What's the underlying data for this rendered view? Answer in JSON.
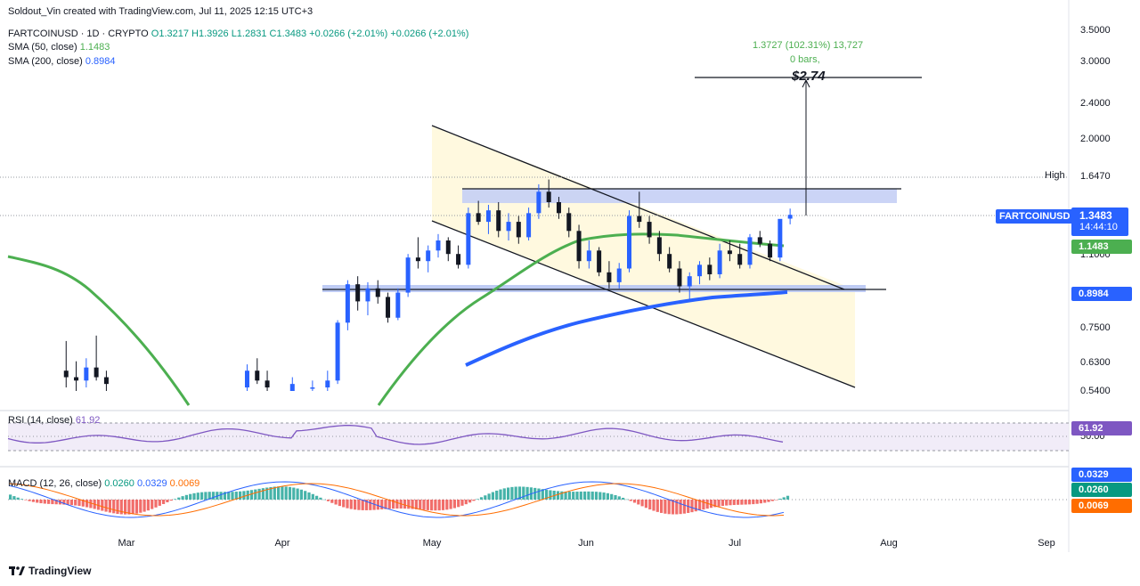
{
  "credit": "Soldout_Vin created with TradingView.com, Jul 11, 2025 12:15 UTC+3",
  "symbol_line": {
    "symbol": "FARTCOINUSD · 1D · CRYPTO",
    "open": "O1.3217",
    "high": "H1.3926",
    "low": "L1.2831",
    "close": "C1.3483",
    "change": "+0.0266 (+2.01%)",
    "change2": "+0.0266 (+2.01%)"
  },
  "sma50": {
    "label": "SMA (50, close)",
    "value": "1.1483",
    "color": "#4caf50"
  },
  "sma200": {
    "label": "SMA (200, close)",
    "value": "0.8984",
    "color": "#2962ff"
  },
  "projection": {
    "line1": "1.3727 (102.31%) 13,727",
    "line2": "0 bars,",
    "target": "$2.74"
  },
  "price_axis": [
    "3.5000",
    "3.0000",
    "2.4000",
    "2.0000",
    "1.6470",
    "1.1000",
    "0.7500",
    "0.6300",
    "0.5400"
  ],
  "high_label": "High",
  "high_value": "1.6470",
  "ticker_badge": {
    "name": "FARTCOINUSD",
    "price": "1.3483",
    "countdown": "14:44:10",
    "color": "#2962ff"
  },
  "sma50_badge": "1.1483",
  "sma200_badge": "0.8984",
  "rsi": {
    "label": "RSI (14, close)",
    "value": "61.92",
    "axis": "50.00",
    "color": "#7e57c2"
  },
  "macd": {
    "label": "MACD (12, 26, close)",
    "macd": "0.0260",
    "signal": "0.0329",
    "hist": "0.0069",
    "macd_color": "#2962ff",
    "signal_color": "#ff6d00"
  },
  "months": [
    "Mar",
    "Apr",
    "May",
    "Jun",
    "Jul",
    "Aug",
    "Sep"
  ],
  "brand": "TradingView",
  "chart_data": {
    "type": "candlestick",
    "symbol": "FARTCOINUSD",
    "interval": "1D",
    "y_scale": "log",
    "ylim": [
      0.54,
      3.5
    ],
    "last_close": 1.3483,
    "period_high": 1.647,
    "target": 2.74,
    "candles_approx": [
      {
        "date": "2025-02-17",
        "o": 0.6,
        "h": 0.7,
        "l": 0.55,
        "c": 0.58
      },
      {
        "date": "2025-02-19",
        "o": 0.58,
        "h": 0.63,
        "l": 0.54,
        "c": 0.57
      },
      {
        "date": "2025-02-21",
        "o": 0.57,
        "h": 0.64,
        "l": 0.55,
        "c": 0.61
      },
      {
        "date": "2025-02-23",
        "o": 0.61,
        "h": 0.72,
        "l": 0.57,
        "c": 0.58
      },
      {
        "date": "2025-02-25",
        "o": 0.58,
        "h": 0.6,
        "l": 0.54,
        "c": 0.56
      },
      {
        "date": "2025-03-25",
        "o": 0.55,
        "h": 0.62,
        "l": 0.54,
        "c": 0.6
      },
      {
        "date": "2025-03-27",
        "o": 0.6,
        "h": 0.64,
        "l": 0.56,
        "c": 0.57
      },
      {
        "date": "2025-03-29",
        "o": 0.57,
        "h": 0.6,
        "l": 0.54,
        "c": 0.55
      },
      {
        "date": "2025-04-03",
        "o": 0.54,
        "h": 0.58,
        "l": 0.54,
        "c": 0.56
      },
      {
        "date": "2025-04-07",
        "o": 0.55,
        "h": 0.57,
        "l": 0.54,
        "c": 0.55
      },
      {
        "date": "2025-04-10",
        "o": 0.55,
        "h": 0.6,
        "l": 0.54,
        "c": 0.57
      },
      {
        "date": "2025-04-12",
        "o": 0.57,
        "h": 0.78,
        "l": 0.56,
        "c": 0.77
      },
      {
        "date": "2025-04-14",
        "o": 0.77,
        "h": 0.96,
        "l": 0.74,
        "c": 0.94
      },
      {
        "date": "2025-04-16",
        "o": 0.94,
        "h": 0.98,
        "l": 0.82,
        "c": 0.86
      },
      {
        "date": "2025-04-18",
        "o": 0.86,
        "h": 0.95,
        "l": 0.8,
        "c": 0.92
      },
      {
        "date": "2025-04-20",
        "o": 0.92,
        "h": 0.96,
        "l": 0.85,
        "c": 0.88
      },
      {
        "date": "2025-04-22",
        "o": 0.88,
        "h": 0.9,
        "l": 0.77,
        "c": 0.79
      },
      {
        "date": "2025-04-24",
        "o": 0.79,
        "h": 0.92,
        "l": 0.78,
        "c": 0.9
      },
      {
        "date": "2025-04-26",
        "o": 0.9,
        "h": 1.1,
        "l": 0.88,
        "c": 1.08
      },
      {
        "date": "2025-04-28",
        "o": 1.08,
        "h": 1.2,
        "l": 1.02,
        "c": 1.06
      },
      {
        "date": "2025-04-30",
        "o": 1.06,
        "h": 1.15,
        "l": 1.0,
        "c": 1.12
      },
      {
        "date": "2025-05-02",
        "o": 1.12,
        "h": 1.22,
        "l": 1.08,
        "c": 1.18
      },
      {
        "date": "2025-05-04",
        "o": 1.18,
        "h": 1.2,
        "l": 1.06,
        "c": 1.1
      },
      {
        "date": "2025-05-06",
        "o": 1.1,
        "h": 1.15,
        "l": 1.02,
        "c": 1.04
      },
      {
        "date": "2025-05-08",
        "o": 1.04,
        "h": 1.4,
        "l": 1.02,
        "c": 1.36
      },
      {
        "date": "2025-05-10",
        "o": 1.36,
        "h": 1.45,
        "l": 1.28,
        "c": 1.3
      },
      {
        "date": "2025-05-12",
        "o": 1.3,
        "h": 1.42,
        "l": 1.22,
        "c": 1.38
      },
      {
        "date": "2025-05-14",
        "o": 1.38,
        "h": 1.44,
        "l": 1.2,
        "c": 1.24
      },
      {
        "date": "2025-05-16",
        "o": 1.24,
        "h": 1.36,
        "l": 1.18,
        "c": 1.3
      },
      {
        "date": "2025-05-18",
        "o": 1.3,
        "h": 1.34,
        "l": 1.16,
        "c": 1.2
      },
      {
        "date": "2025-05-20",
        "o": 1.2,
        "h": 1.4,
        "l": 1.18,
        "c": 1.36
      },
      {
        "date": "2025-05-22",
        "o": 1.36,
        "h": 1.58,
        "l": 1.32,
        "c": 1.52
      },
      {
        "date": "2025-05-24",
        "o": 1.52,
        "h": 1.62,
        "l": 1.4,
        "c": 1.44
      },
      {
        "date": "2025-05-26",
        "o": 1.44,
        "h": 1.48,
        "l": 1.32,
        "c": 1.36
      },
      {
        "date": "2025-05-28",
        "o": 1.36,
        "h": 1.4,
        "l": 1.2,
        "c": 1.24
      },
      {
        "date": "2025-05-30",
        "o": 1.24,
        "h": 1.28,
        "l": 1.02,
        "c": 1.06
      },
      {
        "date": "2025-06-01",
        "o": 1.06,
        "h": 1.18,
        "l": 1.02,
        "c": 1.12
      },
      {
        "date": "2025-06-03",
        "o": 1.12,
        "h": 1.14,
        "l": 0.98,
        "c": 1.0
      },
      {
        "date": "2025-06-05",
        "o": 1.0,
        "h": 1.06,
        "l": 0.92,
        "c": 0.95
      },
      {
        "date": "2025-06-07",
        "o": 0.95,
        "h": 1.05,
        "l": 0.92,
        "c": 1.02
      },
      {
        "date": "2025-06-09",
        "o": 1.02,
        "h": 1.38,
        "l": 1.0,
        "c": 1.34
      },
      {
        "date": "2025-06-11",
        "o": 1.34,
        "h": 1.52,
        "l": 1.26,
        "c": 1.3
      },
      {
        "date": "2025-06-13",
        "o": 1.3,
        "h": 1.34,
        "l": 1.16,
        "c": 1.2
      },
      {
        "date": "2025-06-15",
        "o": 1.2,
        "h": 1.24,
        "l": 1.06,
        "c": 1.1
      },
      {
        "date": "2025-06-17",
        "o": 1.1,
        "h": 1.14,
        "l": 1.0,
        "c": 1.02
      },
      {
        "date": "2025-06-19",
        "o": 1.02,
        "h": 1.06,
        "l": 0.9,
        "c": 0.93
      },
      {
        "date": "2025-06-21",
        "o": 0.93,
        "h": 1.0,
        "l": 0.86,
        "c": 0.98
      },
      {
        "date": "2025-06-23",
        "o": 0.98,
        "h": 1.06,
        "l": 0.94,
        "c": 1.04
      },
      {
        "date": "2025-06-25",
        "o": 1.04,
        "h": 1.08,
        "l": 0.96,
        "c": 0.99
      },
      {
        "date": "2025-06-27",
        "o": 0.99,
        "h": 1.16,
        "l": 0.97,
        "c": 1.12
      },
      {
        "date": "2025-06-29",
        "o": 1.12,
        "h": 1.18,
        "l": 1.06,
        "c": 1.1
      },
      {
        "date": "2025-07-01",
        "o": 1.1,
        "h": 1.16,
        "l": 1.02,
        "c": 1.04
      },
      {
        "date": "2025-07-03",
        "o": 1.04,
        "h": 1.22,
        "l": 1.02,
        "c": 1.2
      },
      {
        "date": "2025-07-05",
        "o": 1.2,
        "h": 1.24,
        "l": 1.14,
        "c": 1.16
      },
      {
        "date": "2025-07-07",
        "o": 1.16,
        "h": 1.18,
        "l": 1.06,
        "c": 1.08
      },
      {
        "date": "2025-07-09",
        "o": 1.08,
        "h": 1.3,
        "l": 1.06,
        "c": 1.32
      },
      {
        "date": "2025-07-11",
        "o": 1.3217,
        "h": 1.3926,
        "l": 1.2831,
        "c": 1.3483
      }
    ]
  }
}
